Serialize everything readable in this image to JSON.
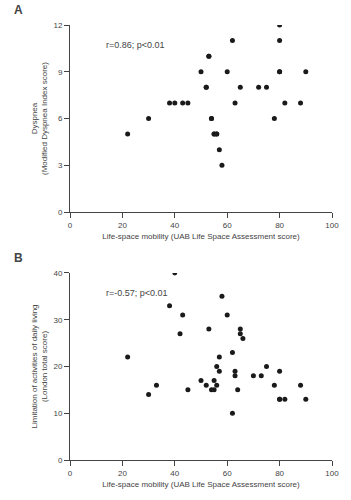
{
  "chart_data": [
    {
      "type": "scatter",
      "title": "A",
      "x_label": "Life-space mobility (UAB Life Space Assessment score)",
      "y_label": "Dyspnea\n(Modified Dyspnea Index score)",
      "annotation": "r=0.86; p<0.01",
      "x": [
        22,
        30,
        38,
        40,
        43,
        45,
        50,
        52,
        52,
        53,
        53,
        54,
        54,
        55,
        55,
        56,
        56,
        57,
        58,
        60,
        62,
        63,
        65,
        72,
        75,
        78,
        80,
        80,
        80,
        80,
        82,
        88,
        90
      ],
      "values": [
        5,
        6,
        7,
        7,
        7,
        7,
        9,
        8,
        8,
        10,
        10,
        6,
        6,
        5,
        5,
        5,
        5,
        4,
        3,
        9,
        11,
        7,
        8,
        8,
        8,
        6,
        12,
        11,
        9,
        9,
        7,
        7,
        9
      ],
      "xlim": [
        0,
        100
      ],
      "ylim": [
        0,
        12
      ],
      "xticks": [
        0,
        20,
        40,
        60,
        80,
        100
      ],
      "yticks": [
        0,
        3,
        6,
        9,
        12
      ],
      "color": "#1a1a1a",
      "marker": "circle",
      "grid": false
    },
    {
      "type": "scatter",
      "title": "B",
      "x_label": "Life-space mobility (UAB Life Space Assessment score)",
      "y_label": "Limitation of activities of daily living\n(London total score)",
      "annotation": "r=-0.57; p<0.01",
      "x": [
        22,
        30,
        33,
        38,
        40,
        42,
        43,
        45,
        50,
        52,
        53,
        54,
        55,
        55,
        56,
        56,
        57,
        57,
        58,
        60,
        62,
        62,
        63,
        63,
        64,
        65,
        65,
        66,
        70,
        73,
        75,
        78,
        80,
        80,
        80,
        82,
        88,
        90
      ],
      "values": [
        22,
        14,
        16,
        33,
        40,
        27,
        31,
        15,
        17,
        16,
        28,
        15,
        17,
        15,
        20,
        16,
        22,
        19,
        35,
        31,
        23,
        10,
        19,
        18,
        15,
        28,
        27,
        26,
        18,
        18,
        20,
        16,
        19,
        13,
        13,
        13,
        16,
        13
      ],
      "xlim": [
        0,
        100
      ],
      "ylim": [
        0,
        40
      ],
      "xticks": [
        0,
        20,
        40,
        60,
        80,
        100
      ],
      "yticks": [
        0,
        10,
        20,
        30,
        40
      ],
      "color": "#1a1a1a",
      "marker": "circle",
      "grid": false
    }
  ]
}
